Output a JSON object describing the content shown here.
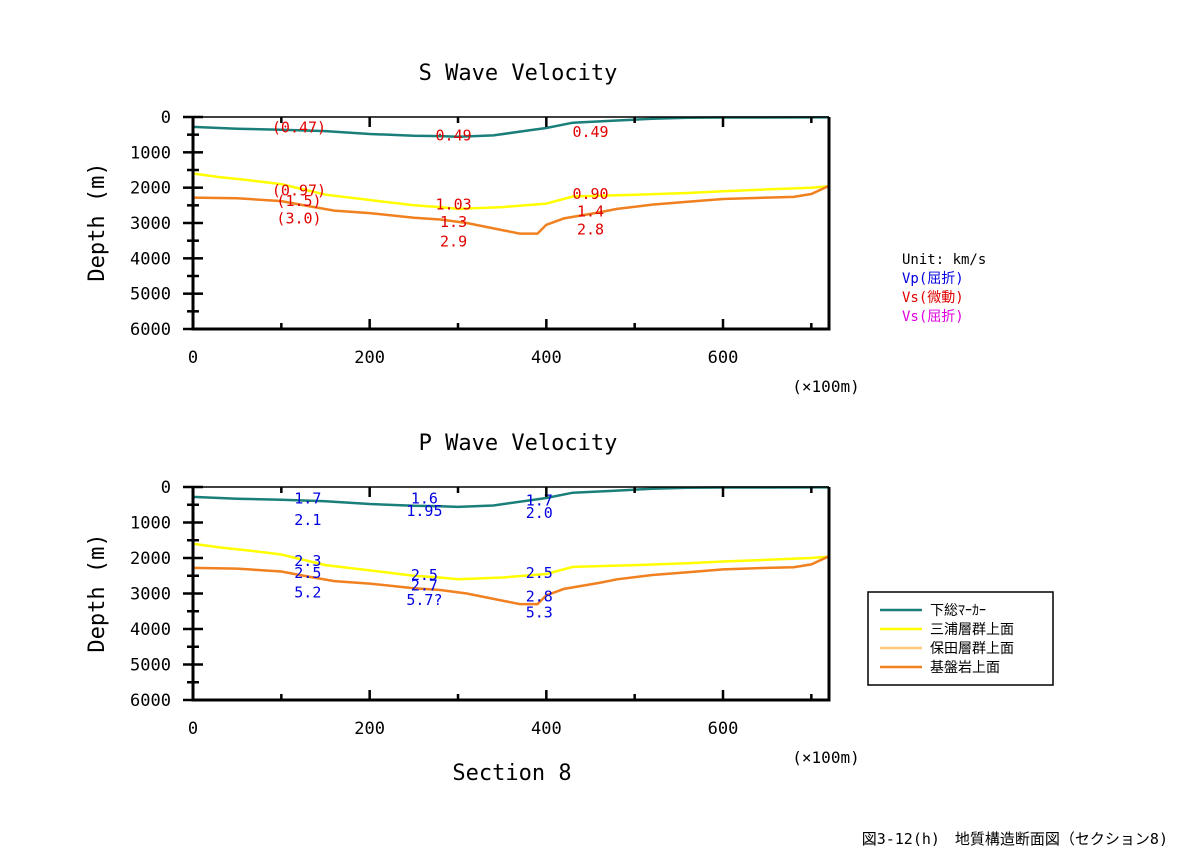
{
  "chart_data": [
    {
      "type": "line",
      "title": "S Wave Velocity",
      "xlabel": "",
      "ylabel": "Depth (m)",
      "x_unit": "(×100m)",
      "xlim": [
        0,
        720
      ],
      "ylim": [
        6000,
        0
      ],
      "x_ticks": [
        "0",
        "200",
        "400",
        "600"
      ],
      "y_ticks": [
        "0",
        "1000",
        "2000",
        "3000",
        "4000",
        "5000",
        "6000"
      ],
      "series": [
        {
          "name": "下総ﾏｰｶｰ",
          "x": [
            0,
            50,
            100,
            150,
            200,
            250,
            280,
            300,
            340,
            380,
            400,
            430,
            480,
            520,
            560,
            600,
            650,
            700,
            720
          ],
          "y": [
            280,
            330,
            360,
            400,
            480,
            530,
            540,
            560,
            520,
            380,
            310,
            160,
            100,
            50,
            20,
            15,
            15,
            10,
            10
          ]
        },
        {
          "name": "三浦層群上面",
          "x": [
            0,
            30,
            60,
            100,
            150,
            200,
            250,
            280,
            300,
            350,
            400,
            430,
            500,
            560,
            600,
            650,
            700,
            720
          ],
          "y": [
            1600,
            1700,
            1780,
            1900,
            2200,
            2350,
            2500,
            2550,
            2600,
            2550,
            2450,
            2250,
            2200,
            2150,
            2100,
            2050,
            2000,
            1960
          ]
        },
        {
          "name": "保田層群上面",
          "x": [],
          "y": []
        },
        {
          "name": "基盤岩上面",
          "x": [
            0,
            50,
            100,
            130,
            160,
            200,
            250,
            280,
            310,
            350,
            370,
            390,
            400,
            420,
            460,
            480,
            520,
            560,
            600,
            650,
            680,
            700,
            720
          ],
          "y": [
            2280,
            2300,
            2380,
            2520,
            2650,
            2720,
            2850,
            2900,
            3000,
            3200,
            3300,
            3300,
            3050,
            2870,
            2700,
            2600,
            2480,
            2400,
            2320,
            2280,
            2260,
            2180,
            1950
          ]
        }
      ],
      "labels": [
        {
          "text": "(0.47)",
          "x": 120,
          "y": 270,
          "color": "#e00000"
        },
        {
          "text": "0.49",
          "x": 295,
          "y": 500,
          "color": "#e00000"
        },
        {
          "text": "0.49",
          "x": 450,
          "y": 400,
          "color": "#e00000"
        },
        {
          "text": "(0.97)",
          "x": 120,
          "y": 2050,
          "color": "#e00000"
        },
        {
          "text": "(1.5)",
          "x": 120,
          "y": 2350,
          "color": "#e00000"
        },
        {
          "text": "(3.0)",
          "x": 120,
          "y": 2850,
          "color": "#e00000"
        },
        {
          "text": "1.03",
          "x": 295,
          "y": 2450,
          "color": "#e00000"
        },
        {
          "text": "1.3",
          "x": 295,
          "y": 2950,
          "color": "#e00000"
        },
        {
          "text": "2.9",
          "x": 295,
          "y": 3500,
          "color": "#e00000"
        },
        {
          "text": "0.90",
          "x": 450,
          "y": 2150,
          "color": "#e00000"
        },
        {
          "text": "1.4",
          "x": 450,
          "y": 2650,
          "color": "#e00000"
        },
        {
          "text": "2.8",
          "x": 450,
          "y": 3150,
          "color": "#e00000"
        }
      ]
    },
    {
      "type": "line",
      "title": "P Wave Velocity",
      "xlabel": "Section 8",
      "ylabel": "Depth (m)",
      "x_unit": "(×100m)",
      "xlim": [
        0,
        720
      ],
      "ylim": [
        6000,
        0
      ],
      "x_ticks": [
        "0",
        "200",
        "400",
        "600"
      ],
      "y_ticks": [
        "0",
        "1000",
        "2000",
        "3000",
        "4000",
        "5000",
        "6000"
      ],
      "series": [
        {
          "name": "下総ﾏｰｶｰ",
          "x": [
            0,
            50,
            100,
            150,
            200,
            250,
            280,
            300,
            340,
            380,
            400,
            430,
            480,
            520,
            560,
            600,
            650,
            700,
            720
          ],
          "y": [
            280,
            330,
            360,
            400,
            480,
            530,
            540,
            560,
            520,
            380,
            310,
            160,
            100,
            50,
            20,
            15,
            15,
            10,
            10
          ]
        },
        {
          "name": "三浦層群上面",
          "x": [
            0,
            30,
            60,
            100,
            150,
            200,
            250,
            280,
            300,
            350,
            400,
            430,
            500,
            560,
            600,
            650,
            700,
            720
          ],
          "y": [
            1600,
            1700,
            1780,
            1900,
            2200,
            2350,
            2500,
            2550,
            2600,
            2550,
            2450,
            2250,
            2200,
            2150,
            2100,
            2050,
            2000,
            1960
          ]
        },
        {
          "name": "保田層群上面",
          "x": [],
          "y": []
        },
        {
          "name": "基盤岩上面",
          "x": [
            0,
            50,
            100,
            130,
            160,
            200,
            250,
            280,
            310,
            350,
            370,
            390,
            400,
            420,
            460,
            480,
            520,
            560,
            600,
            650,
            680,
            700,
            720
          ],
          "y": [
            2280,
            2300,
            2380,
            2520,
            2650,
            2720,
            2850,
            2900,
            3000,
            3200,
            3300,
            3300,
            3050,
            2870,
            2700,
            2600,
            2480,
            2400,
            2320,
            2280,
            2260,
            2180,
            1950
          ]
        }
      ],
      "labels": [
        {
          "text": "1.7",
          "x": 130,
          "y": 300,
          "color": "#0000e0"
        },
        {
          "text": "2.1",
          "x": 130,
          "y": 900,
          "color": "#0000e0"
        },
        {
          "text": "1.6",
          "x": 262,
          "y": 300,
          "color": "#0000e0"
        },
        {
          "text": "1.95",
          "x": 262,
          "y": 650,
          "color": "#0000e0"
        },
        {
          "text": "1.7",
          "x": 392,
          "y": 350,
          "color": "#0000e0"
        },
        {
          "text": "2.0",
          "x": 392,
          "y": 700,
          "color": "#0000e0"
        },
        {
          "text": "2.3",
          "x": 130,
          "y": 2050,
          "color": "#0000e0"
        },
        {
          "text": "2.5",
          "x": 130,
          "y": 2400,
          "color": "#0000e0"
        },
        {
          "text": "5.2",
          "x": 130,
          "y": 2950,
          "color": "#0000e0"
        },
        {
          "text": "2.5",
          "x": 262,
          "y": 2450,
          "color": "#0000e0"
        },
        {
          "text": "2.7",
          "x": 262,
          "y": 2750,
          "color": "#0000e0"
        },
        {
          "text": "5.7?",
          "x": 262,
          "y": 3150,
          "color": "#0000e0"
        },
        {
          "text": "2.5",
          "x": 392,
          "y": 2400,
          "color": "#0000e0"
        },
        {
          "text": "2.8",
          "x": 392,
          "y": 3050,
          "color": "#0000e0"
        },
        {
          "text": "5.3",
          "x": 392,
          "y": 3500,
          "color": "#0000e0"
        }
      ]
    }
  ],
  "unit_legend": [
    {
      "text": "Unit: km/s",
      "color": "#000000"
    },
    {
      "text": "Vp(屈折)",
      "color": "#0000e0"
    },
    {
      "text": "Vs(微動)",
      "color": "#e00000"
    },
    {
      "text": "Vs(屈折)",
      "color": "#e000e0"
    }
  ],
  "line_legend": [
    {
      "label": "下総ﾏｰｶｰ",
      "color": "#1a7f7a"
    },
    {
      "label": "三浦層群上面",
      "color": "#ffff00"
    },
    {
      "label": "保田層群上面",
      "color": "#ffc87a"
    },
    {
      "label": "基盤岩上面",
      "color": "#f08020"
    }
  ],
  "caption": "図3-12(h)　地質構造断面図（セクション8)"
}
